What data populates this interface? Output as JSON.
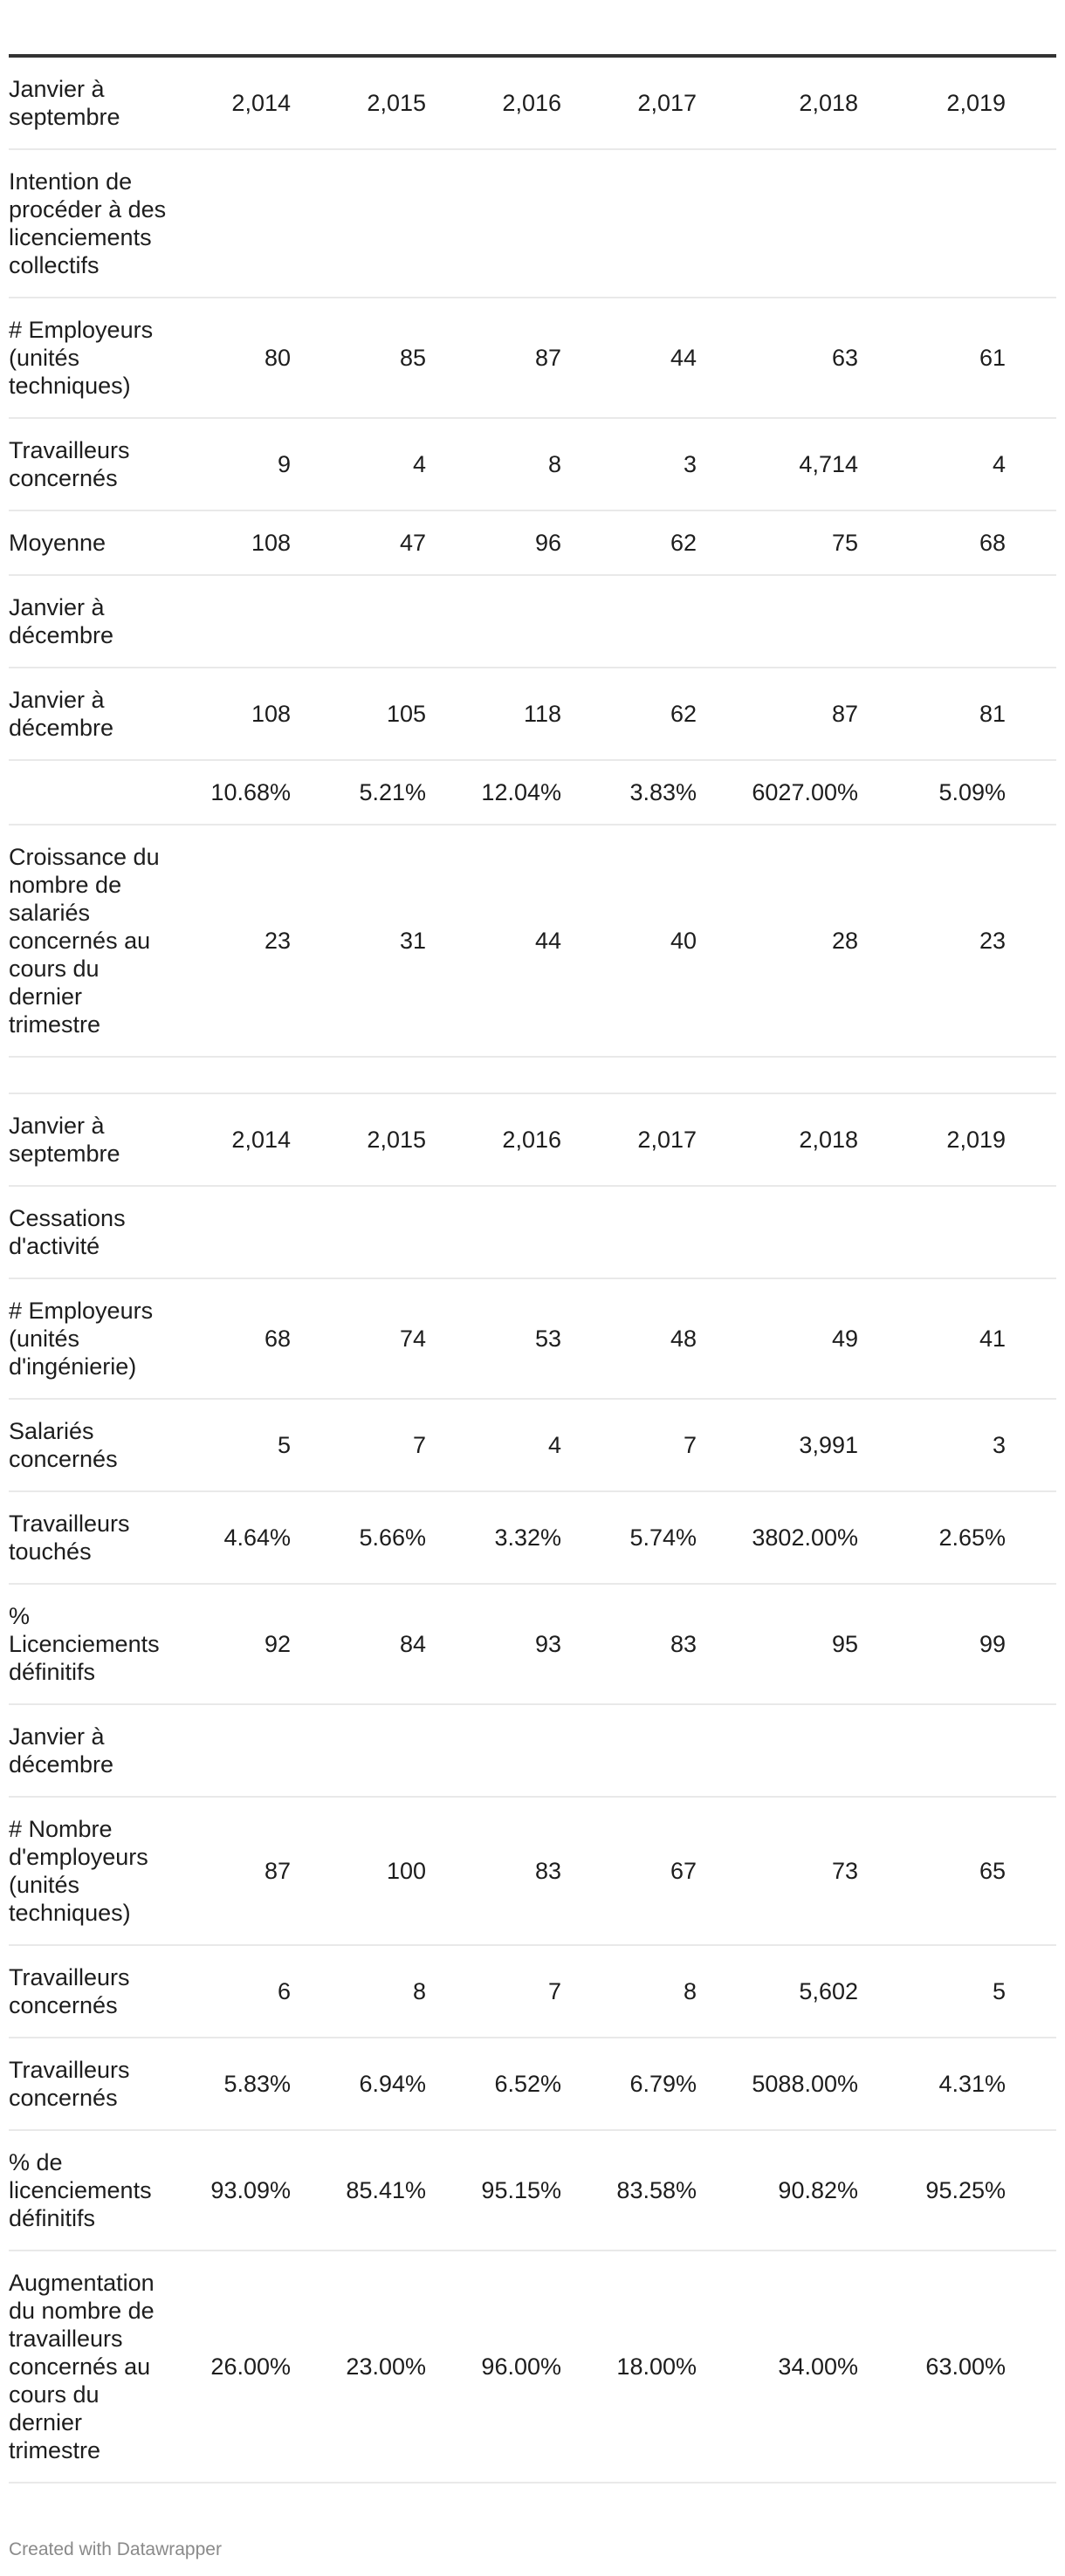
{
  "chart_data": {
    "type": "table",
    "columns": [
      "",
      "",
      "",
      "",
      "",
      "",
      ""
    ],
    "rows": [
      [
        "Janvier à septembre",
        "2,014",
        "2,015",
        "2,016",
        "2,017",
        "2,018",
        "2,019"
      ],
      [
        "Intention de procéder à des licenciements collectifs",
        "",
        "",
        "",
        "",
        "",
        ""
      ],
      [
        "# Employeurs (unités techniques)",
        "80",
        "85",
        "87",
        "44",
        "63",
        "61"
      ],
      [
        "Travailleurs concernés",
        "9",
        "4",
        "8",
        "3",
        "4,714",
        "4"
      ],
      [
        "Moyenne",
        "108",
        "47",
        "96",
        "62",
        "75",
        "68"
      ],
      [
        "Janvier à décembre",
        "",
        "",
        "",
        "",
        "",
        ""
      ],
      [
        "Janvier à décembre",
        "108",
        "105",
        "118",
        "62",
        "87",
        "81"
      ],
      [
        "",
        "10.68%",
        "5.21%",
        "12.04%",
        "3.83%",
        "6027.00%",
        "5.09%"
      ],
      [
        "Croissance du nombre de salariés concernés au cours du dernier trimestre",
        "23",
        "31",
        "44",
        "40",
        "28",
        "23"
      ],
      [
        "",
        "",
        "",
        "",
        "",
        "",
        ""
      ],
      [
        "Janvier à septembre",
        "2,014",
        "2,015",
        "2,016",
        "2,017",
        "2,018",
        "2,019"
      ],
      [
        "Cessations d'activité",
        "",
        "",
        "",
        "",
        "",
        ""
      ],
      [
        "# Employeurs (unités d'ingénierie)",
        "68",
        "74",
        "53",
        "48",
        "49",
        "41"
      ],
      [
        "Salariés concernés",
        "5",
        "7",
        "4",
        "7",
        "3,991",
        "3"
      ],
      [
        "Travailleurs touchés",
        "4.64%",
        "5.66%",
        "3.32%",
        "5.74%",
        "3802.00%",
        "2.65%"
      ],
      [
        "% Licenciements définitifs",
        "92",
        "84",
        "93",
        "83",
        "95",
        "99"
      ],
      [
        "Janvier à décembre",
        "",
        "",
        "",
        "",
        "",
        ""
      ],
      [
        "# Nombre d'employeurs (unités techniques)",
        "87",
        "100",
        "83",
        "67",
        "73",
        "65"
      ],
      [
        "Travailleurs concernés",
        "6",
        "8",
        "7",
        "8",
        "5,602",
        "5"
      ],
      [
        "Travailleurs concernés",
        "5.83%",
        "6.94%",
        "6.52%",
        "6.79%",
        "5088.00%",
        "4.31%"
      ],
      [
        "% de licenciements définitifs",
        "93.09%",
        "85.41%",
        "95.15%",
        "83.58%",
        "90.82%",
        "95.25%"
      ],
      [
        "Augmentation du nombre de travailleurs concernés au cours du dernier trimestre",
        "26.00%",
        "23.00%",
        "96.00%",
        "18.00%",
        "34.00%",
        "63.00%"
      ]
    ]
  },
  "footer": {
    "credit": "Created with Datawrapper"
  }
}
